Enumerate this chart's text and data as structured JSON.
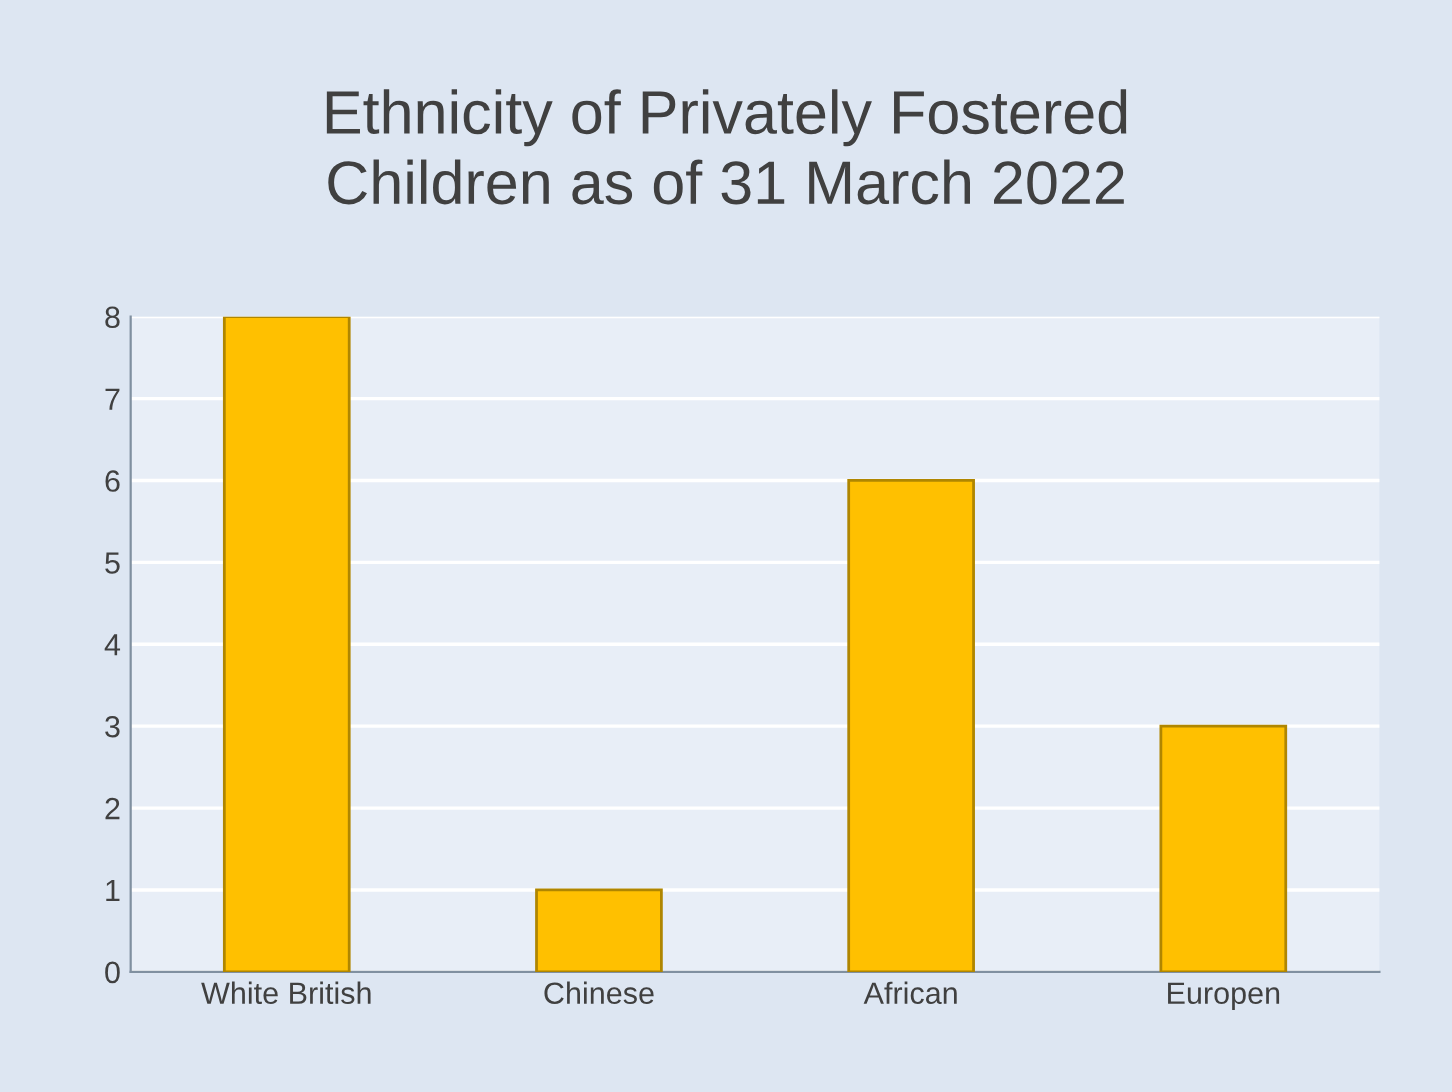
{
  "chart_data": {
    "type": "bar",
    "title": "Ethnicity of Privately Fostered\nChildren as of 31 March 2022",
    "categories": [
      "White British",
      "Chinese",
      "African",
      "Europen"
    ],
    "values": [
      8,
      1,
      6,
      3
    ],
    "color": "#ffc000",
    "ylim": [
      0,
      8
    ],
    "yticks": [
      0,
      1,
      2,
      3,
      4,
      5,
      6,
      7,
      8
    ],
    "grid": "y",
    "legend": false
  }
}
